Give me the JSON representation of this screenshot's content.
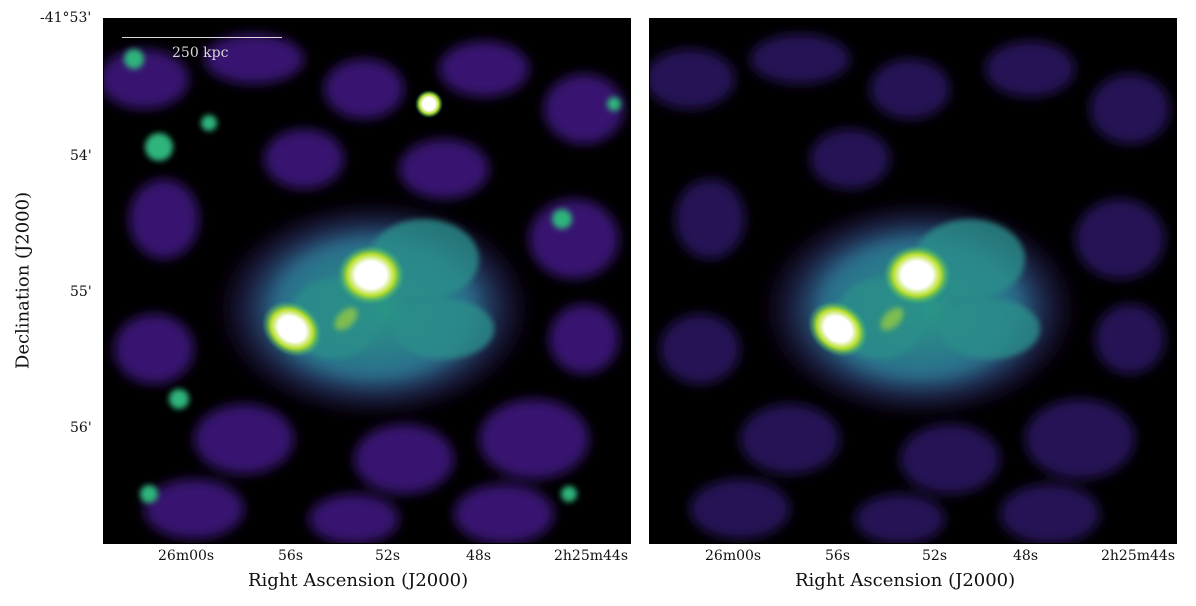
{
  "figure": {
    "panels": [
      {
        "id": "left",
        "x_label": "Right Ascension (J2000)",
        "y_label": "Declination (J2000)",
        "x_ticks": [
          "26m00s",
          "56s",
          "52s",
          "48s",
          "2h25m44s"
        ],
        "y_ticks": [
          "-41°53'",
          "54'",
          "55'",
          "56'"
        ],
        "scalebar": "250 kpc"
      },
      {
        "id": "right",
        "x_label": "Right Ascension (J2000)",
        "x_ticks": [
          "26m00s",
          "56s",
          "52s",
          "48s",
          "2h25m44s"
        ]
      }
    ],
    "colormap": [
      "#000000",
      "#3b0f70",
      "#4a2a8c",
      "#2a7a8c",
      "#2fb47c",
      "#b5de2b",
      "#ffffff"
    ]
  }
}
